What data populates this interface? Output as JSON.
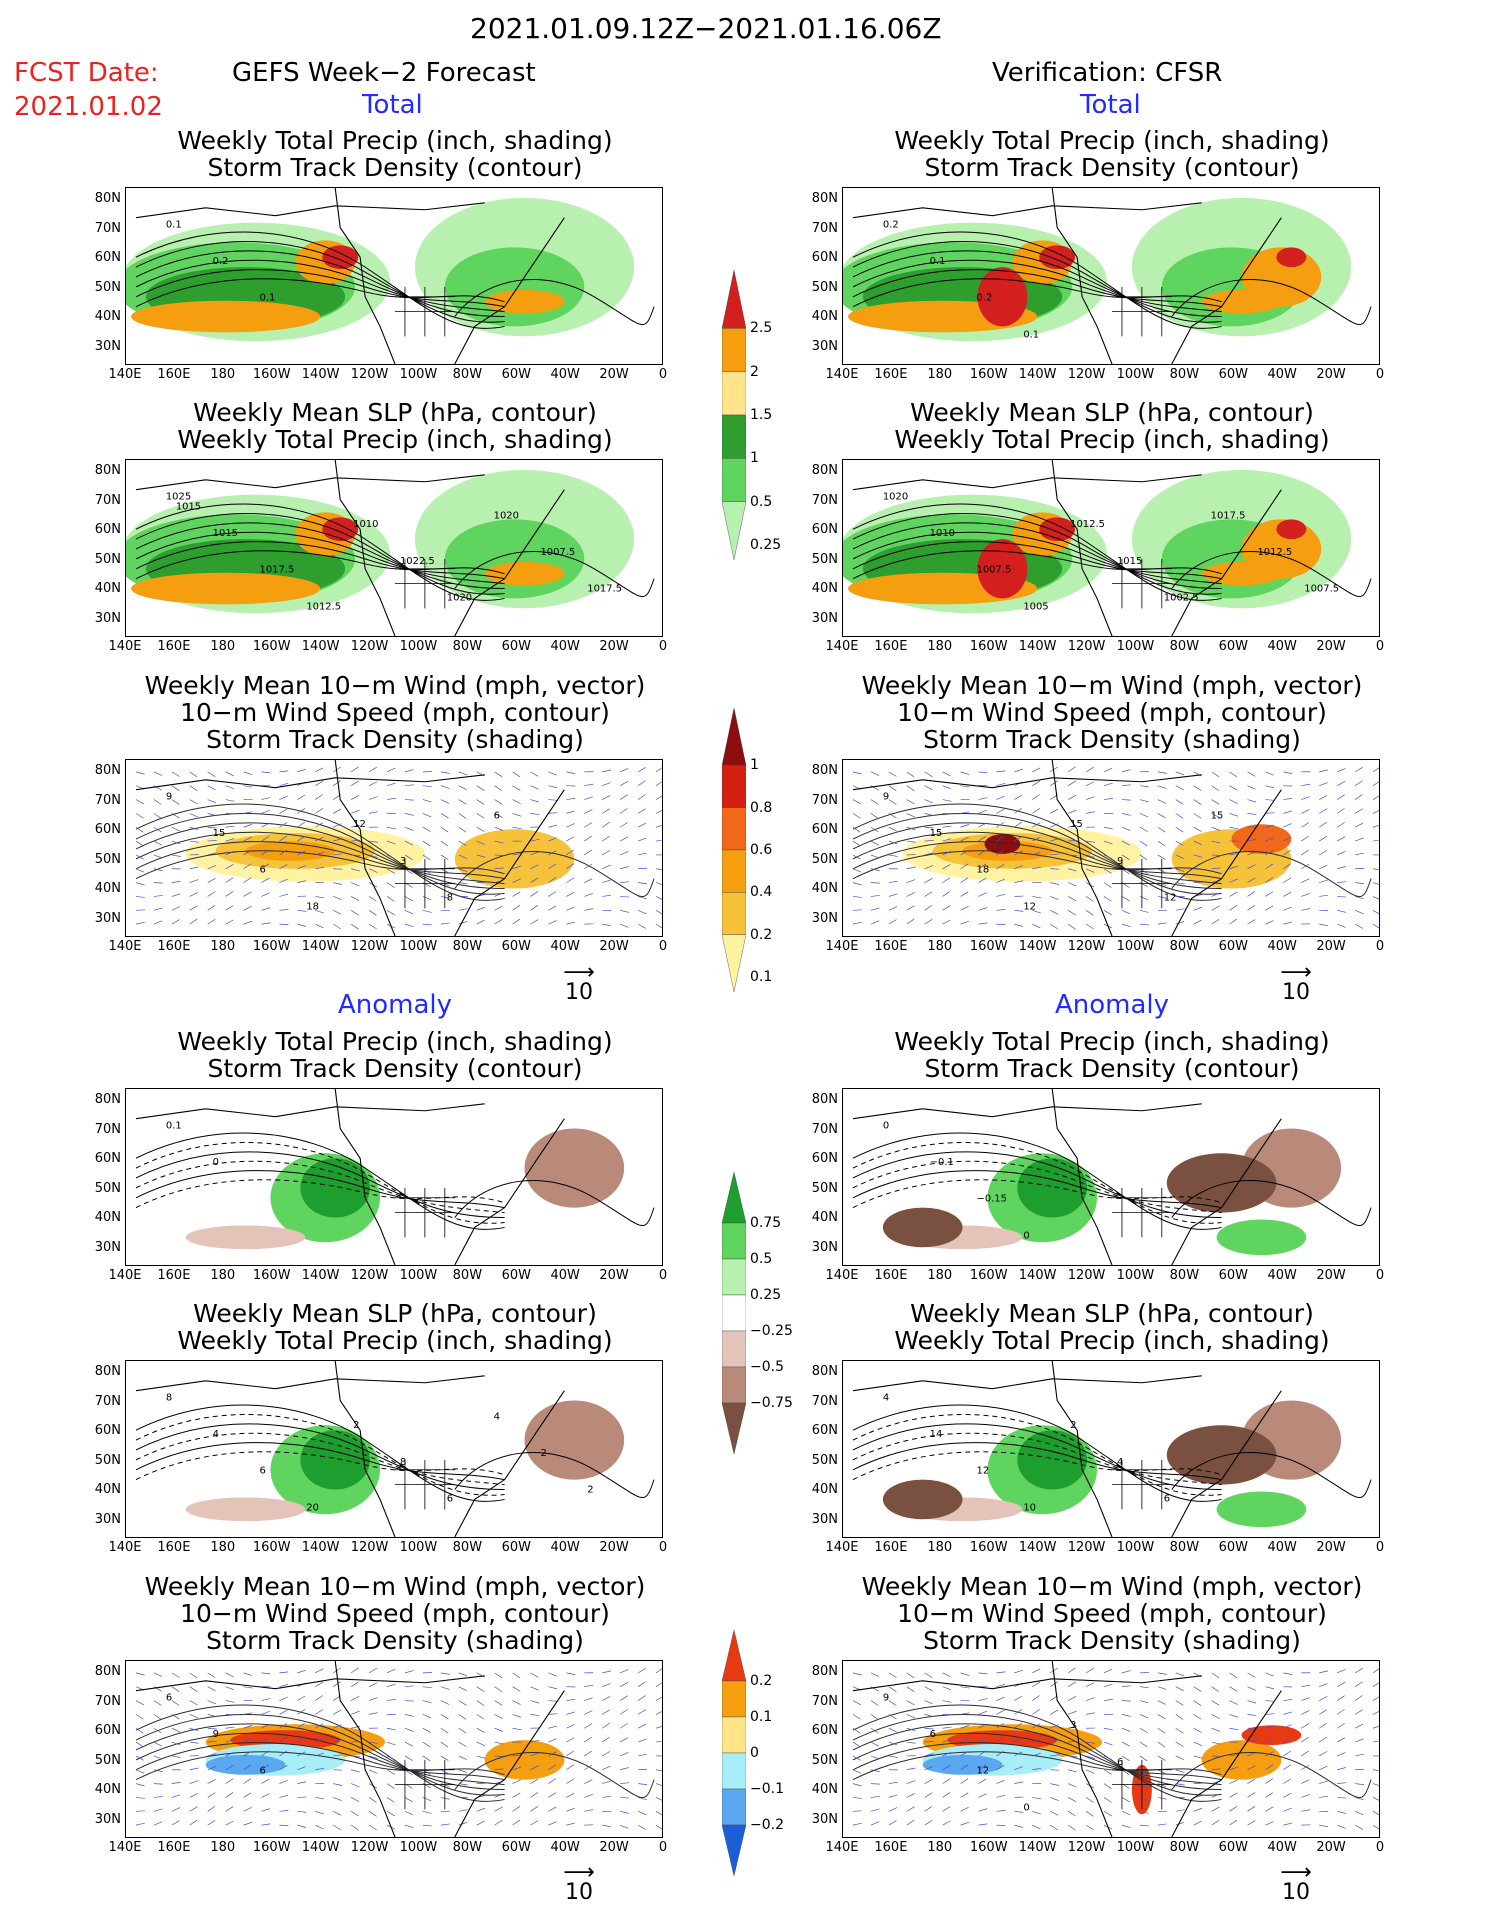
{
  "header": {
    "date_range": "2021.01.09.12Z−2021.01.16.06Z",
    "fcst_label": "FCST Date:",
    "fcst_date": "2021.01.02",
    "left_title": "GEFS Week−2 Forecast",
    "right_title": "Verification: CFSR"
  },
  "sections": {
    "total": "Total",
    "anomaly": "Anomaly"
  },
  "panel_titles": {
    "precip_track": [
      "Weekly Total Precip (inch, shading)",
      "Storm Track Density (contour)"
    ],
    "slp_precip": [
      "Weekly Mean SLP (hPa, contour)",
      "Weekly Total Precip (inch, shading)"
    ],
    "wind_track": [
      "Weekly Mean 10−m Wind (mph, vector)",
      "10−m Wind Speed (mph, contour)",
      "Storm Track Density (shading)"
    ]
  },
  "axes": {
    "lat_labels": [
      "80N",
      "70N",
      "60N",
      "50N",
      "40N",
      "30N"
    ],
    "lon_labels": [
      "140E",
      "160E",
      "180",
      "160W",
      "140W",
      "120W",
      "100W",
      "80W",
      "60W",
      "40W",
      "20W",
      "0"
    ]
  },
  "colorbars": {
    "precip_total": {
      "labels": [
        "2.5",
        "2",
        "1.5",
        "1",
        "0.5",
        "0.25"
      ],
      "colors": [
        "#d41f1f",
        "#f59e0f",
        "#ffe48a",
        "#2e9e2e",
        "#5fd45f",
        "#b8f0b0"
      ]
    },
    "track_total": {
      "labels": [
        "1",
        "0.8",
        "0.6",
        "0.4",
        "0.2",
        "0.1"
      ],
      "colors": [
        "#8c0d0d",
        "#d42010",
        "#f2681a",
        "#f59e0f",
        "#f5c23a",
        "#fff2a0"
      ]
    },
    "precip_anom": {
      "labels": [
        "0.75",
        "0.5",
        "0.25",
        "−0.25",
        "−0.5",
        "−0.75"
      ],
      "colors": [
        "#1e9e2e",
        "#5fd45f",
        "#b8f0b0",
        "#ffffff",
        "#e4c4b8",
        "#b98a7a",
        "#7a5040"
      ]
    },
    "track_anom": {
      "labels": [
        "0.2",
        "0.1",
        "0",
        "−0.1",
        "−0.2"
      ],
      "colors": [
        "#e83a12",
        "#f59e0f",
        "#ffe48a",
        "#a8eef8",
        "#5aa8f0",
        "#1a5ed8"
      ]
    }
  },
  "vector_ref": "10",
  "contour_labels": {
    "p1": [
      "0.1",
      "0.2",
      "0.1"
    ],
    "p2": [
      "1025",
      "1015",
      "1017.5",
      "1012.5",
      "1010",
      "1022.5",
      "1020",
      "1020",
      "1007.5",
      "1017.5",
      "1015"
    ],
    "p3": [
      "9",
      "15",
      "6",
      "18",
      "12",
      "3",
      "8",
      "6"
    ],
    "p4": [
      "0.1",
      "0"
    ],
    "p5": [
      "8",
      "4",
      "6",
      "20",
      "2",
      "8",
      "6",
      "4",
      "2",
      "2"
    ],
    "p6": [
      "6",
      "9",
      "6"
    ],
    "q1": [
      "0.2",
      "0.1",
      "0.2",
      "0.1"
    ],
    "q2": [
      "1020",
      "1010",
      "1007.5",
      "1005",
      "1012.5",
      "1015",
      "1002.5",
      "1017.5",
      "1012.5",
      "1007.5"
    ],
    "q3": [
      "9",
      "15",
      "18",
      "12",
      "15",
      "9",
      "12",
      "15"
    ],
    "q4": [
      "0",
      "−0.1",
      "−0.15",
      "0"
    ],
    "q5": [
      "4",
      "14",
      "12",
      "10",
      "2",
      "4",
      "6"
    ],
    "q6": [
      "9",
      "6",
      "12",
      "0",
      "3",
      "6"
    ]
  }
}
